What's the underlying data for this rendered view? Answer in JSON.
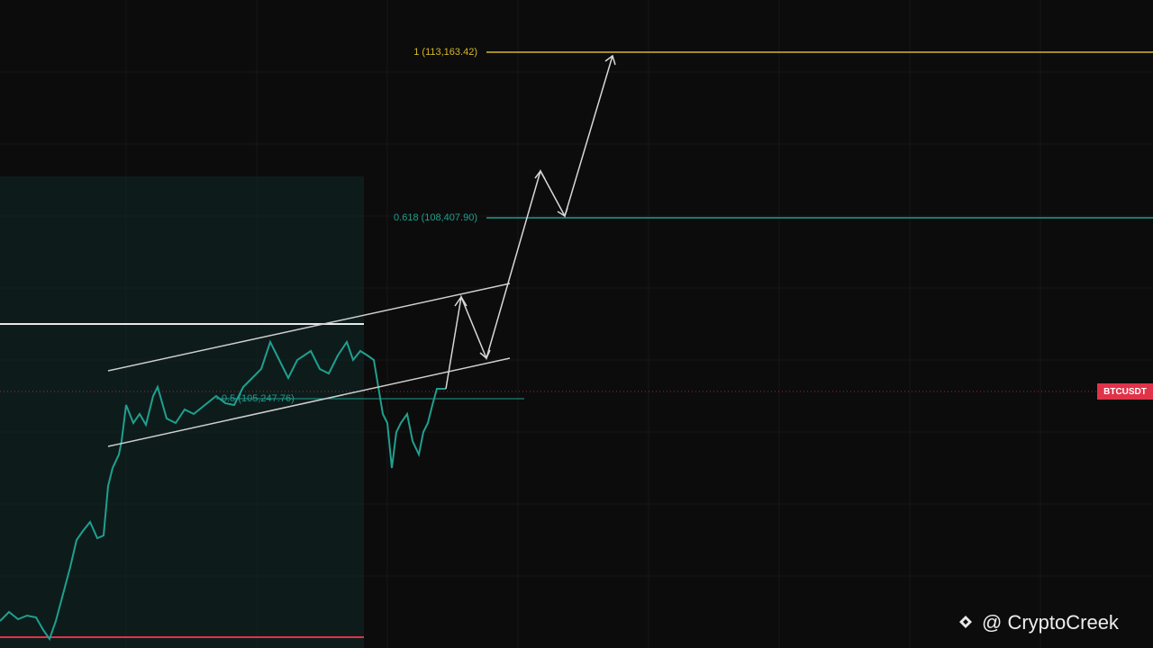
{
  "fib_levels": [
    {
      "label": "1 (113,163.42)",
      "color": "#d4b82a"
    },
    {
      "label": "0.618 (108,407.90)",
      "color": "#1f9e8e"
    },
    {
      "label": "0.5 (105,247.76)",
      "color": "#1f9e8e"
    }
  ],
  "symbol_tag": "BTCUSDT",
  "watermark": "@ CryptoCreek"
}
